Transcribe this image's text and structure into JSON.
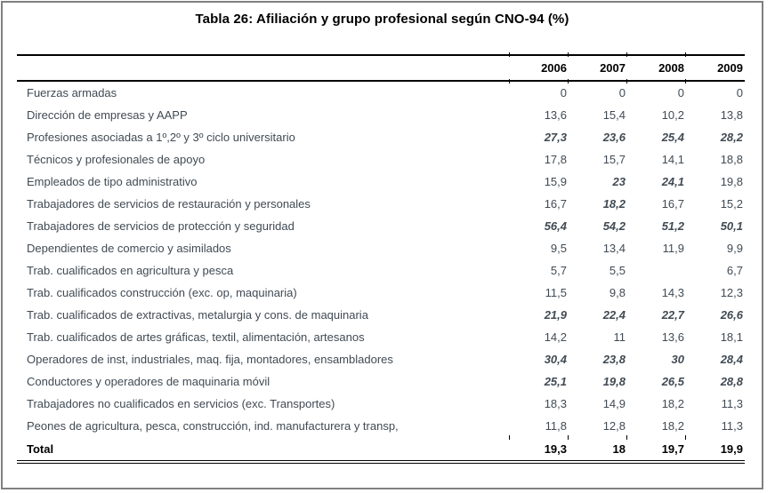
{
  "page": {
    "title": "Tabla 26: Afiliación y grupo profesional según CNO-94 (%)"
  },
  "table": {
    "columns": [
      "2006",
      "2007",
      "2008",
      "2009"
    ],
    "rows": [
      {
        "label": "Fuerzas armadas",
        "values": [
          "0",
          "0",
          "0",
          "0"
        ],
        "emph": [
          false,
          false,
          false,
          false
        ],
        "is_total": false
      },
      {
        "label": "Dirección de empresas y AAPP",
        "values": [
          "13,6",
          "15,4",
          "10,2",
          "13,8"
        ],
        "emph": [
          false,
          false,
          false,
          false
        ],
        "is_total": false
      },
      {
        "label": "Profesiones asociadas a 1º,2º y 3º ciclo universitario",
        "values": [
          "27,3",
          "23,6",
          "25,4",
          "28,2"
        ],
        "emph": [
          true,
          true,
          true,
          true
        ],
        "is_total": false
      },
      {
        "label": "Técnicos y profesionales de apoyo",
        "values": [
          "17,8",
          "15,7",
          "14,1",
          "18,8"
        ],
        "emph": [
          false,
          false,
          false,
          false
        ],
        "is_total": false
      },
      {
        "label": "Empleados de tipo administrativo",
        "values": [
          "15,9",
          "23",
          "24,1",
          "19,8"
        ],
        "emph": [
          false,
          true,
          true,
          false
        ],
        "is_total": false
      },
      {
        "label": "Trabajadores de servicios de restauración y personales",
        "values": [
          "16,7",
          "18,2",
          "16,7",
          "15,2"
        ],
        "emph": [
          false,
          true,
          false,
          false
        ],
        "is_total": false
      },
      {
        "label": "Trabajadores de servicios de protección y seguridad",
        "values": [
          "56,4",
          "54,2",
          "51,2",
          "50,1"
        ],
        "emph": [
          true,
          true,
          true,
          true
        ],
        "is_total": false
      },
      {
        "label": "Dependientes de comercio y asimilados",
        "values": [
          "9,5",
          "13,4",
          "11,9",
          "9,9"
        ],
        "emph": [
          false,
          false,
          false,
          false
        ],
        "is_total": false
      },
      {
        "label": "Trab. cualificados en agricultura y pesca",
        "values": [
          "5,7",
          "5,5",
          "",
          "6,7"
        ],
        "emph": [
          false,
          false,
          false,
          false
        ],
        "is_total": false
      },
      {
        "label": "Trab. cualificados construcción (exc. op, maquinaria)",
        "values": [
          "11,5",
          "9,8",
          "14,3",
          "12,3"
        ],
        "emph": [
          false,
          false,
          false,
          false
        ],
        "is_total": false
      },
      {
        "label": "Trab. cualificados de extractivas, metalurgia y cons. de maquinaria",
        "values": [
          "21,9",
          "22,4",
          "22,7",
          "26,6"
        ],
        "emph": [
          true,
          true,
          true,
          true
        ],
        "is_total": false
      },
      {
        "label": "Trab. cualificados de artes gráficas, textil, alimentación, artesanos",
        "values": [
          "14,2",
          "11",
          "13,6",
          "18,1"
        ],
        "emph": [
          false,
          false,
          false,
          false
        ],
        "is_total": false
      },
      {
        "label": "Operadores de inst, industriales, maq. fija, montadores, ensambladores",
        "values": [
          "30,4",
          "23,8",
          "30",
          "28,4"
        ],
        "emph": [
          true,
          true,
          true,
          true
        ],
        "is_total": false
      },
      {
        "label": "Conductores y operadores de maquinaria móvil",
        "values": [
          "25,1",
          "19,8",
          "26,5",
          "28,8"
        ],
        "emph": [
          true,
          true,
          true,
          true
        ],
        "is_total": false
      },
      {
        "label": "Trabajadores no cualificados en servicios (exc. Transportes)",
        "values": [
          "18,3",
          "14,9",
          "18,2",
          "11,3"
        ],
        "emph": [
          false,
          false,
          false,
          false
        ],
        "is_total": false
      },
      {
        "label": "Peones de agricultura, pesca, construcción, ind. manufacturera y transp,",
        "values": [
          "11,8",
          "12,8",
          "18,2",
          "11,3"
        ],
        "emph": [
          false,
          false,
          false,
          false
        ],
        "is_total": false
      },
      {
        "label": "Total",
        "values": [
          "19,3",
          "18",
          "19,7",
          "19,9"
        ],
        "emph": [
          false,
          false,
          false,
          false
        ],
        "is_total": true
      }
    ]
  },
  "colors": {
    "frame_border": "#808080",
    "rule": "#000000",
    "body_text": "#404a53",
    "heading_text": "#000000"
  }
}
